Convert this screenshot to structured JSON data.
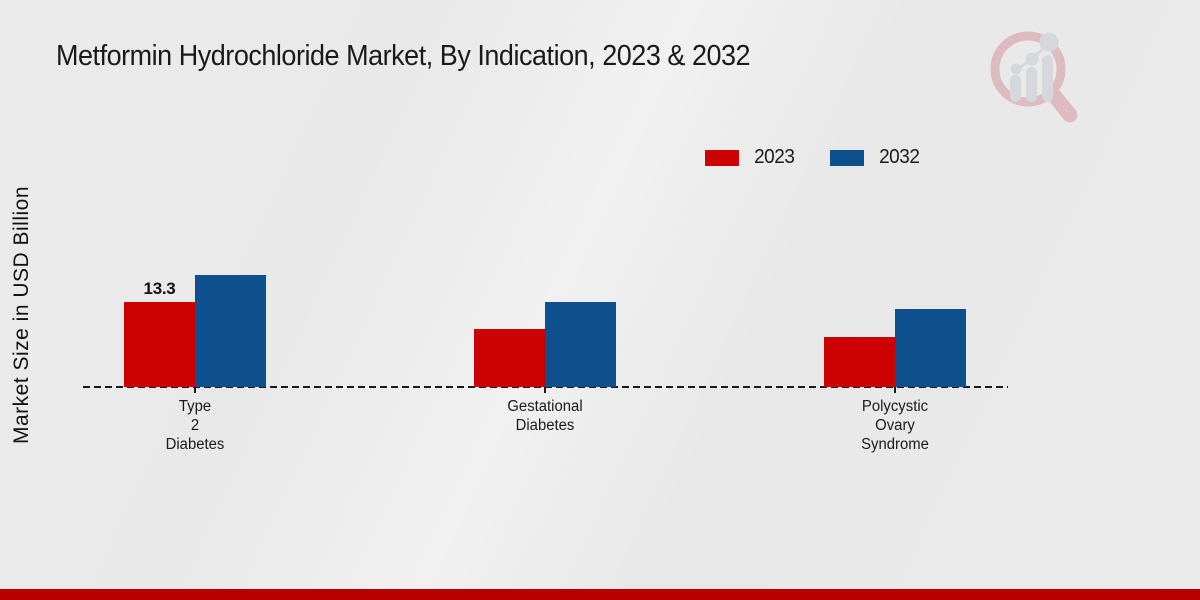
{
  "title": "Metformin Hydrochloride Market, By Indication, 2023 & 2032",
  "y_axis_label": "Market Size in USD Billion",
  "legend": [
    {
      "label": "2023",
      "color": "#cc0000"
    },
    {
      "label": "2032",
      "color": "#0e4f8e"
    }
  ],
  "chart_data": {
    "type": "bar",
    "title": "Metformin Hydrochloride Market, By Indication, 2023 & 2032",
    "ylabel": "Market Size in USD Billion",
    "xlabel": "",
    "categories": [
      "Type 2 Diabetes",
      "Gestational Diabetes",
      "Polycystic Ovary Syndrome"
    ],
    "category_lines": [
      [
        "Type",
        "2",
        "Diabetes"
      ],
      [
        "Gestational",
        "Diabetes"
      ],
      [
        "Polycystic",
        "Ovary",
        "Syndrome"
      ]
    ],
    "series": [
      {
        "name": "2023",
        "color": "#cc0000",
        "values": [
          13.3,
          9.0,
          7.8
        ]
      },
      {
        "name": "2032",
        "color": "#0e4f8e",
        "values": [
          17.5,
          13.3,
          12.2
        ]
      }
    ],
    "value_labels": [
      {
        "series": "2023",
        "category_index": 0,
        "text": "13.3"
      }
    ],
    "ylim": [
      0,
      20
    ],
    "grid": false,
    "baseline_style": "dashed",
    "legend_position": "top-right"
  },
  "icons": {
    "logo": "mrfr-magnifier-bar-chart-logo"
  },
  "colors": {
    "bar_2023": "#cc0000",
    "bar_2032": "#0e4f8e",
    "footer_bar": "#b70000",
    "background": "#eaeaea",
    "text": "#1a1a1a"
  }
}
